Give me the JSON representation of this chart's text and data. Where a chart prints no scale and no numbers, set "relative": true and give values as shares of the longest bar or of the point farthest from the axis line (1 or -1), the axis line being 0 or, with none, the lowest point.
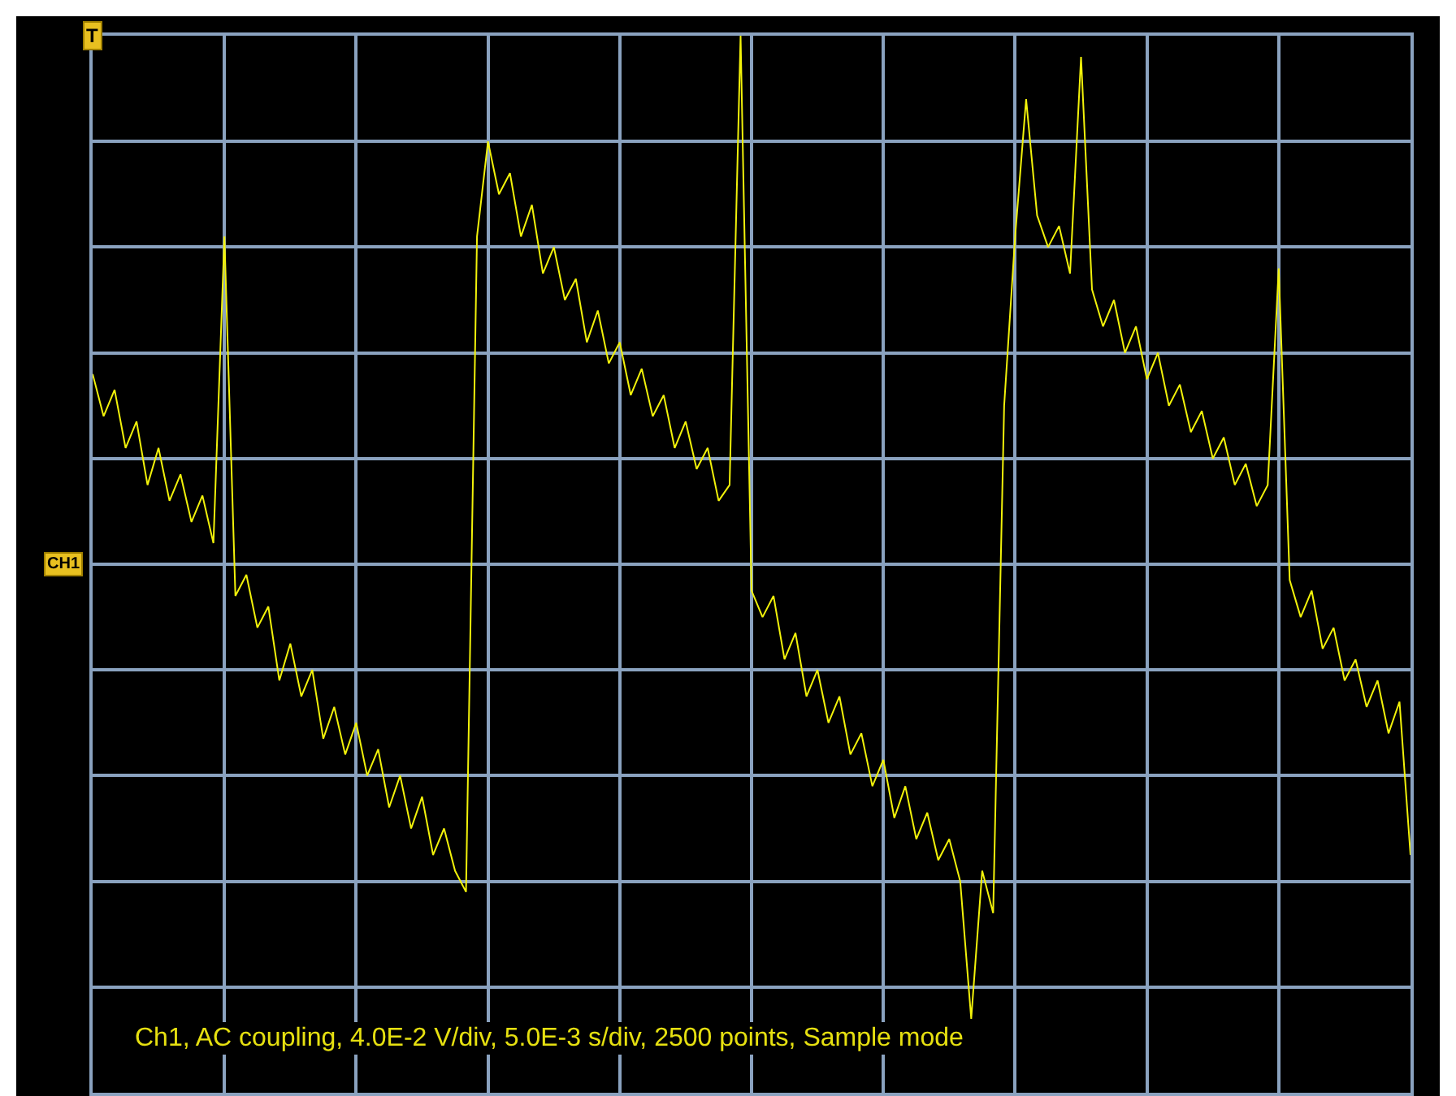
{
  "chart_data": {
    "type": "line",
    "relative": true,
    "grid": true,
    "line_style": "solid",
    "annotations": [
      "T",
      "CH1",
      "Ch1, AC coupling, 4.0E-2 V/div, 5.0E-3 s/div, 2500 points, Sample mode"
    ],
    "categories": [
      null,
      null,
      null,
      null,
      null,
      null,
      null,
      null,
      null,
      null,
      null,
      null,
      null,
      null,
      null,
      null,
      null,
      null,
      null,
      null,
      null,
      null,
      null,
      null,
      null,
      null,
      null,
      null,
      null,
      null,
      null,
      null,
      null,
      null,
      null,
      null,
      null,
      null,
      null,
      null,
      null,
      null,
      null,
      null,
      null,
      null,
      null,
      null,
      null,
      null,
      null,
      null,
      null,
      null,
      null,
      null,
      null,
      null,
      null,
      null,
      null,
      null,
      null,
      null,
      null,
      null,
      null,
      null,
      null,
      null,
      null,
      null,
      null,
      null,
      null,
      null,
      null,
      null,
      null,
      null,
      null,
      null,
      null,
      null,
      null,
      null,
      null,
      null,
      null,
      null,
      null,
      null,
      null,
      null,
      null,
      null,
      null,
      null,
      null,
      null,
      null,
      null,
      null,
      null,
      null,
      null,
      null,
      null,
      null,
      null,
      null,
      null,
      null,
      null,
      null,
      null,
      null,
      null,
      null,
      null,
      null
    ],
    "series": [
      {
        "color": "#f2f20a",
        "values": [
          0.36,
          0.28,
          0.33,
          0.22,
          0.27,
          0.15,
          0.22,
          0.12,
          0.17,
          0.08,
          0.13,
          0.04,
          0.62,
          -0.06,
          -0.02,
          -0.12,
          -0.08,
          -0.22,
          -0.15,
          -0.25,
          -0.2,
          -0.33,
          -0.27,
          -0.36,
          -0.3,
          -0.4,
          -0.35,
          -0.46,
          -0.4,
          -0.5,
          -0.44,
          -0.55,
          -0.5,
          -0.58,
          -0.62,
          0.62,
          0.8,
          0.7,
          0.74,
          0.62,
          0.68,
          0.55,
          0.6,
          0.5,
          0.54,
          0.42,
          0.48,
          0.38,
          0.42,
          0.32,
          0.37,
          0.28,
          0.32,
          0.22,
          0.27,
          0.18,
          0.22,
          0.12,
          0.15,
          1.0,
          -0.05,
          -0.1,
          -0.06,
          -0.18,
          -0.13,
          -0.25,
          -0.2,
          -0.3,
          -0.25,
          -0.36,
          -0.32,
          -0.42,
          -0.37,
          -0.48,
          -0.42,
          -0.52,
          -0.47,
          -0.56,
          -0.52,
          -0.6,
          -0.86,
          -0.58,
          -0.66,
          0.3,
          0.62,
          0.88,
          0.66,
          0.6,
          0.64,
          0.55,
          0.96,
          0.52,
          0.45,
          0.5,
          0.4,
          0.45,
          0.35,
          0.4,
          0.3,
          0.34,
          0.25,
          0.29,
          0.2,
          0.24,
          0.15,
          0.19,
          0.11,
          0.15,
          0.56,
          -0.03,
          -0.1,
          -0.05,
          -0.16,
          -0.12,
          -0.22,
          -0.18,
          -0.27,
          -0.22,
          -0.32,
          -0.26,
          -0.55
        ]
      }
    ]
  }
}
